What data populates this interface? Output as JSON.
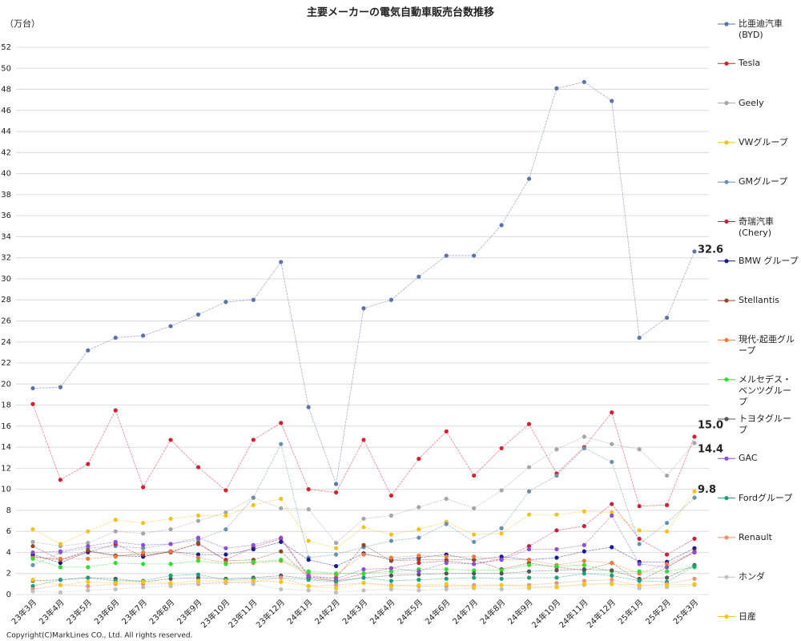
{
  "chart_data": {
    "type": "line",
    "title": "主要メーカーの電気自動車販売台数推移",
    "y_label": "（万台）",
    "copyright": "Copyright(C)MarkLines CO., Ltd. All rights reserved.",
    "categories": [
      "23年3月",
      "23年4月",
      "23年5月",
      "23年6月",
      "23年7月",
      "23年8月",
      "23年9月",
      "23年10月",
      "23年11月",
      "23年12月",
      "24年1月",
      "24年2月",
      "24年3月",
      "24年4月",
      "24年5月",
      "24年6月",
      "24年7月",
      "24年8月",
      "24年9月",
      "24年10月",
      "24年11月",
      "24年12月",
      "25年1月",
      "25年2月",
      "25年3月"
    ],
    "ylim": [
      0,
      52
    ],
    "yticks": [
      0,
      2,
      4,
      6,
      8,
      10,
      12,
      14,
      16,
      18,
      20,
      22,
      24,
      26,
      28,
      30,
      32,
      34,
      36,
      38,
      40,
      42,
      44,
      46,
      48,
      50,
      52
    ],
    "grid": true,
    "series": [
      {
        "name": "比亜迪汽車 (BYD)",
        "color": "#5b73a6",
        "values": [
          19.6,
          19.7,
          23.2,
          24.4,
          24.6,
          25.5,
          26.6,
          27.8,
          28.0,
          31.6,
          17.8,
          10.5,
          27.2,
          28.0,
          30.2,
          32.2,
          32.2,
          35.1,
          39.5,
          48.1,
          48.7,
          46.9,
          24.4,
          26.3,
          32.6
        ],
        "last_value_label": "32.6"
      },
      {
        "name": "Tesla",
        "color": "#d62031",
        "values": [
          18.1,
          10.9,
          12.4,
          17.5,
          10.2,
          14.7,
          12.1,
          9.9,
          14.7,
          16.3,
          10.0,
          9.7,
          14.7,
          9.4,
          12.9,
          15.5,
          11.3,
          13.9,
          16.2,
          11.5,
          14.0,
          17.3,
          8.4,
          8.5,
          15.0
        ],
        "last_value_label": "15.0"
      },
      {
        "name": "Geely",
        "color": "#a6a6a6",
        "values": [
          5.0,
          4.6,
          4.9,
          6.0,
          5.8,
          6.2,
          7.0,
          7.8,
          9.2,
          8.2,
          8.1,
          4.9,
          7.2,
          7.5,
          8.3,
          9.1,
          8.2,
          9.9,
          12.1,
          13.8,
          15.0,
          14.3,
          13.8,
          11.3,
          14.4
        ],
        "last_value_label": "14.4"
      },
      {
        "name": "VWグループ",
        "color": "#f2c21b",
        "values": [
          6.2,
          4.8,
          6.0,
          7.1,
          6.8,
          7.2,
          7.5,
          7.5,
          8.5,
          9.1,
          5.1,
          4.4,
          6.4,
          5.7,
          6.2,
          6.9,
          5.7,
          5.8,
          7.6,
          7.6,
          7.9,
          7.8,
          6.1,
          6.0,
          9.8
        ],
        "last_value_label": "9.8"
      },
      {
        "name": "GMグループ",
        "color": "#6a8fb0",
        "values": [
          2.8,
          4.0,
          4.4,
          4.6,
          4.4,
          4.8,
          5.2,
          6.2,
          9.2,
          14.3,
          3.5,
          3.8,
          4.5,
          5.1,
          5.4,
          6.7,
          5.0,
          6.3,
          9.8,
          11.3,
          13.9,
          12.6,
          4.8,
          6.8,
          9.2
        ]
      },
      {
        "name": "奇瑞汽車 (Chery)",
        "color": "#c8203e",
        "values": [
          3.6,
          3.3,
          4.0,
          4.8,
          3.6,
          4.1,
          4.8,
          3.3,
          4.5,
          5.3,
          1.7,
          1.3,
          2.0,
          2.5,
          3.0,
          3.2,
          2.9,
          3.4,
          4.6,
          6.1,
          6.5,
          8.6,
          5.3,
          3.8,
          5.3
        ]
      },
      {
        "name": "BMW グループ",
        "color": "#1a1a8c",
        "values": [
          3.8,
          3.0,
          4.1,
          3.7,
          3.6,
          4.1,
          3.8,
          3.8,
          4.3,
          5.0,
          3.3,
          2.7,
          3.9,
          3.3,
          3.5,
          3.8,
          3.3,
          3.6,
          3.3,
          3.5,
          4.1,
          4.5,
          3.1,
          3.1,
          4.4
        ]
      },
      {
        "name": "Stellantis",
        "color": "#8b4a2b",
        "values": [
          4.6,
          3.3,
          4.2,
          3.7,
          3.8,
          4.0,
          4.9,
          3.2,
          3.3,
          4.1,
          1.6,
          1.6,
          4.7,
          3.2,
          3.3,
          3.3,
          3.3,
          2.4,
          3.0,
          2.6,
          2.3,
          3.0,
          1.3,
          2.6,
          4.1
        ]
      },
      {
        "name": "現代-起亜グループ",
        "color": "#f07a3c",
        "values": [
          3.5,
          3.4,
          3.4,
          3.6,
          4.0,
          4.1,
          3.5,
          3.0,
          3.0,
          3.2,
          2.0,
          1.9,
          3.8,
          3.5,
          3.7,
          3.6,
          3.6,
          3.3,
          3.3,
          2.8,
          3.2,
          3.0,
          2.0,
          2.9,
          4.0
        ]
      },
      {
        "name": "メルセデス・ベンツグループ",
        "color": "#2ee02e",
        "values": [
          3.4,
          2.6,
          2.6,
          3.0,
          2.9,
          2.9,
          3.2,
          2.9,
          3.1,
          3.3,
          2.2,
          2.0,
          2.0,
          2.2,
          2.4,
          2.4,
          2.3,
          2.3,
          2.8,
          2.7,
          2.8,
          2.2,
          2.2,
          2.2,
          2.6
        ]
      },
      {
        "name": "トヨタグループ",
        "color": "#555555",
        "values": [
          1.3,
          1.4,
          1.6,
          1.5,
          1.2,
          1.5,
          1.6,
          1.5,
          1.6,
          1.8,
          1.5,
          1.3,
          1.6,
          1.8,
          1.9,
          2.0,
          2.0,
          2.0,
          2.2,
          2.3,
          2.4,
          2.3,
          1.5,
          1.6,
          2.8
        ]
      },
      {
        "name": "GAC",
        "color": "#8a4fd6",
        "values": [
          4.0,
          4.1,
          4.6,
          5.0,
          4.7,
          4.8,
          5.4,
          4.4,
          4.7,
          5.4,
          1.8,
          1.5,
          2.4,
          2.5,
          2.2,
          3.0,
          2.9,
          3.3,
          4.3,
          4.3,
          4.7,
          7.5,
          2.9,
          2.6,
          4.0
        ]
      },
      {
        "name": "Fordグループ",
        "color": "#1f9e7a",
        "values": [
          0.8,
          1.4,
          1.6,
          1.3,
          1.3,
          1.8,
          1.9,
          1.4,
          1.5,
          1.6,
          1.4,
          1.2,
          1.6,
          1.3,
          1.4,
          1.5,
          1.6,
          1.5,
          1.6,
          1.6,
          2.0,
          1.8,
          1.3,
          1.2,
          2.7
        ]
      },
      {
        "name": "Renault",
        "color": "#f09070",
        "values": [
          0.5,
          0.9,
          0.8,
          1.0,
          1.0,
          1.0,
          1.0,
          1.1,
          1.2,
          1.6,
          0.8,
          0.9,
          1.1,
          0.9,
          0.8,
          0.8,
          0.9,
          0.9,
          0.9,
          1.1,
          1.3,
          1.4,
          0.8,
          1.0,
          1.5
        ]
      },
      {
        "name": "ホンダ",
        "color": "#c0c0c0",
        "values": [
          0.3,
          0.2,
          0.4,
          0.5,
          0.7,
          0.8,
          1.1,
          1.2,
          1.0,
          0.5,
          0.4,
          0.2,
          0.4,
          0.5,
          0.4,
          0.5,
          0.6,
          0.5,
          0.6,
          0.8,
          0.9,
          1.1,
          0.6,
          0.7,
          0.9
        ]
      },
      {
        "name": "日産",
        "color": "#f5c518",
        "values": [
          1.4,
          0.9,
          1.2,
          1.1,
          1.2,
          1.1,
          1.3,
          1.3,
          1.3,
          1.2,
          0.8,
          0.6,
          1.1,
          0.8,
          0.9,
          1.0,
          0.7,
          0.9,
          0.7,
          0.7,
          1.0,
          1.0,
          0.9,
          0.9,
          1.0
        ]
      }
    ]
  }
}
